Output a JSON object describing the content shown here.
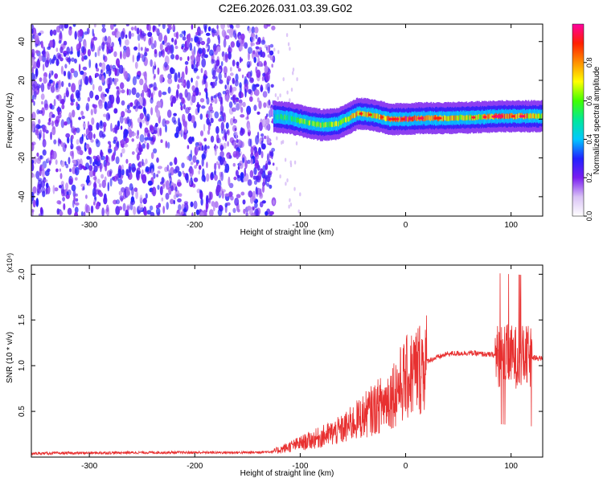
{
  "title": "C2E6.2026.031.03.39.G02",
  "colors": {
    "snr_line": "#e83030",
    "frame": "#000000"
  },
  "chart_data": [
    {
      "type": "heatmap",
      "xlabel": "Height of straight line (km)",
      "ylabel": "Frequency (Hz)",
      "xlim": [
        -355,
        130
      ],
      "ylim": [
        -50,
        49
      ],
      "x_ticks": [
        -300,
        -200,
        -100,
        0,
        100
      ],
      "y_ticks": [
        -40,
        -20,
        0,
        20,
        40
      ],
      "colorbar": {
        "label": "Normalized spectral amplitude",
        "range": [
          0,
          1
        ],
        "ticks": [
          "0.0",
          "0.2",
          "0.4",
          "0.6",
          "0.8"
        ],
        "colormap": [
          "#ffffff",
          "#d9c2f5",
          "#7a1ef0",
          "#2222ff",
          "#00c8ff",
          "#00e89a",
          "#40ff00",
          "#ffff00",
          "#ff9000",
          "#ff2000",
          "#ff00a0"
        ]
      },
      "noise_region_x": [
        -355,
        -125
      ],
      "ridge": [
        {
          "x": -125,
          "freq": 1.5,
          "amp": 0.45
        },
        {
          "x": -110,
          "freq": 0.5,
          "amp": 0.55
        },
        {
          "x": -95,
          "freq": -1.5,
          "amp": 0.6
        },
        {
          "x": -80,
          "freq": -3,
          "amp": 0.62
        },
        {
          "x": -65,
          "freq": -2.5,
          "amp": 0.6
        },
        {
          "x": -55,
          "freq": 0,
          "amp": 0.65
        },
        {
          "x": -45,
          "freq": 3,
          "amp": 0.75
        },
        {
          "x": -30,
          "freq": 2,
          "amp": 0.75
        },
        {
          "x": -15,
          "freq": 0,
          "amp": 0.8
        },
        {
          "x": 0,
          "freq": 0,
          "amp": 0.9
        },
        {
          "x": 15,
          "freq": 0.5,
          "amp": 0.85
        },
        {
          "x": 40,
          "freq": 0.5,
          "amp": 0.75
        },
        {
          "x": 70,
          "freq": 1,
          "amp": 0.7
        },
        {
          "x": 90,
          "freq": 1.5,
          "amp": 0.85
        },
        {
          "x": 110,
          "freq": 1.5,
          "amp": 0.8
        },
        {
          "x": 130,
          "freq": 1.5,
          "amp": 0.7
        }
      ]
    },
    {
      "type": "line",
      "xlabel": "Height of straight line (km)",
      "ylabel": "SNR (10 * v/v)",
      "y_multiplier": "(x10⁴)",
      "xlim": [
        -355,
        130
      ],
      "ylim": [
        0,
        2.1
      ],
      "x_ticks": [
        -300,
        -200,
        -100,
        0,
        100
      ],
      "y_ticks": [
        0.5,
        1.0,
        1.5,
        2.0
      ],
      "y_tick_labels": [
        "0.5",
        "1.0",
        "1.5",
        "2.0"
      ],
      "envelope": [
        {
          "x": -355,
          "y": 0.04
        },
        {
          "x": -250,
          "y": 0.05
        },
        {
          "x": -150,
          "y": 0.05
        },
        {
          "x": -125,
          "y": 0.06
        },
        {
          "x": -100,
          "y": 0.15
        },
        {
          "x": -80,
          "y": 0.22
        },
        {
          "x": -60,
          "y": 0.3
        },
        {
          "x": -40,
          "y": 0.45
        },
        {
          "x": -20,
          "y": 0.6
        },
        {
          "x": 0,
          "y": 0.85
        },
        {
          "x": 20,
          "y": 1.05
        },
        {
          "x": 40,
          "y": 1.13
        },
        {
          "x": 60,
          "y": 1.14
        },
        {
          "x": 80,
          "y": 1.12
        },
        {
          "x": 100,
          "y": 1.1
        },
        {
          "x": 130,
          "y": 1.08
        }
      ]
    }
  ]
}
